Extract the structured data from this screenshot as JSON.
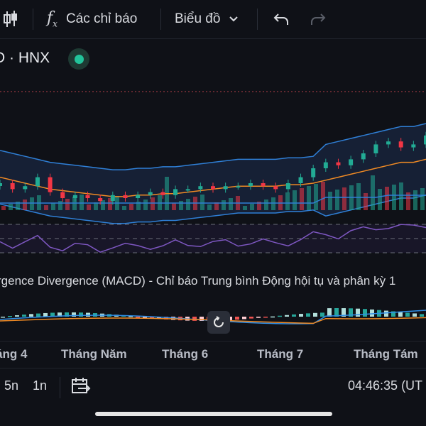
{
  "toolbar": {
    "indicators_label": "Các chỉ báo",
    "chart_type_label": "Biểu đồ"
  },
  "symbol": {
    "text": "D · HNX",
    "live_color": "#22c39a"
  },
  "macd": {
    "title": "rgence Divergence (MACD) - Chỉ báo Trung bình Động hội tụ và phân kỳ 1"
  },
  "x_axis": {
    "labels": [
      "áng 4",
      "Tháng Năm",
      "Tháng 6",
      "Tháng 7",
      "Tháng Tám"
    ]
  },
  "bottom": {
    "range_5n": "5n",
    "range_1n": "1n",
    "time": "04:46:35 (UT"
  },
  "colors": {
    "up": "#22ab94",
    "down": "#f23645",
    "bollinger": "#2f7fd6",
    "ma": "#f08a24",
    "rsi": "#7e57c2",
    "macd_line": "#2f8fe8",
    "signal_line": "#f08a24"
  },
  "chart_data": {
    "type": "line",
    "title": "",
    "series": [
      {
        "values": [
          52,
          51,
          50,
          49,
          48,
          47.5,
          47,
          46.5,
          46,
          45.5,
          45.5,
          46,
          46,
          46.5,
          46.5,
          47,
          47.5,
          48,
          48.5,
          49,
          49,
          49,
          49,
          49.5,
          49.5,
          50,
          51,
          52,
          53,
          54,
          55,
          56,
          57,
          57,
          58
        ]
      },
      {
        "values": [
          50,
          48,
          49,
          52,
          47,
          45,
          46,
          45,
          44,
          46,
          45,
          46,
          47,
          46,
          48,
          48,
          49,
          48,
          49,
          49,
          50,
          49,
          48,
          50,
          52,
          55,
          57,
          56,
          58,
          60,
          63,
          64,
          62,
          63,
          66
        ]
      }
    ]
  }
}
